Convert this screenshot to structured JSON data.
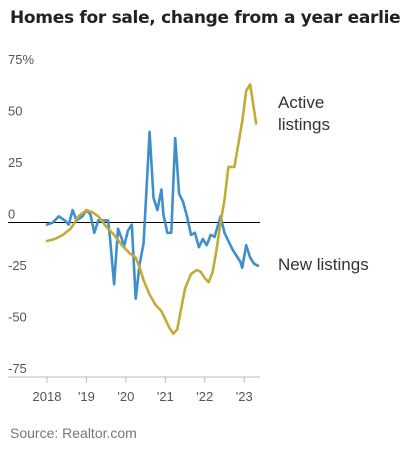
{
  "chart_data": {
    "type": "line",
    "title": "Homes for sale, change from a year earlier",
    "source": "Source: Realtor.com",
    "ylim": [
      -75,
      75
    ],
    "xlim": [
      2018,
      2023.4
    ],
    "y_ticks": [
      75,
      50,
      25,
      0,
      -25,
      -50,
      -75
    ],
    "y_tick_labels": [
      "75%",
      "50",
      "25",
      "0",
      "-25",
      "-50",
      "-75"
    ],
    "x_ticks": [
      2018,
      2019,
      2020,
      2021,
      2022,
      2023
    ],
    "x_tick_labels": [
      "2018",
      "'19",
      "'20",
      "'21",
      "'22",
      "'23"
    ],
    "grid": false,
    "colors": {
      "active": "#c2ab36",
      "new": "#3f8fcb",
      "zero": "#000000",
      "axis": "#bbbbbb"
    },
    "series": [
      {
        "name": "Active listings",
        "label_lines": [
          "Active",
          "listings"
        ],
        "color": "#c2ab36",
        "points": [
          [
            2018.0,
            -9
          ],
          [
            2018.2,
            -8
          ],
          [
            2018.4,
            -6
          ],
          [
            2018.6,
            -3
          ],
          [
            2018.8,
            3
          ],
          [
            2019.0,
            6
          ],
          [
            2019.15,
            5
          ],
          [
            2019.3,
            3
          ],
          [
            2019.5,
            -2
          ],
          [
            2019.7,
            -6
          ],
          [
            2019.9,
            -11
          ],
          [
            2020.1,
            -15
          ],
          [
            2020.25,
            -17
          ],
          [
            2020.35,
            -22
          ],
          [
            2020.45,
            -28
          ],
          [
            2020.6,
            -35
          ],
          [
            2020.75,
            -40
          ],
          [
            2020.9,
            -43
          ],
          [
            2021.0,
            -47
          ],
          [
            2021.1,
            -51
          ],
          [
            2021.2,
            -54
          ],
          [
            2021.3,
            -52
          ],
          [
            2021.4,
            -42
          ],
          [
            2021.5,
            -32
          ],
          [
            2021.65,
            -25
          ],
          [
            2021.8,
            -23
          ],
          [
            2021.9,
            -24
          ],
          [
            2022.0,
            -27
          ],
          [
            2022.1,
            -29
          ],
          [
            2022.2,
            -24
          ],
          [
            2022.3,
            -13
          ],
          [
            2022.4,
            0
          ],
          [
            2022.5,
            11
          ],
          [
            2022.6,
            27
          ],
          [
            2022.75,
            27
          ],
          [
            2022.85,
            38
          ],
          [
            2022.95,
            49
          ],
          [
            2023.05,
            64
          ],
          [
            2023.15,
            67
          ],
          [
            2023.2,
            61
          ],
          [
            2023.3,
            48
          ]
        ]
      },
      {
        "name": "New listings",
        "label_lines": [
          "New listings"
        ],
        "color": "#3f8fcb",
        "points": [
          [
            2018.0,
            -1
          ],
          [
            2018.15,
            0
          ],
          [
            2018.3,
            3
          ],
          [
            2018.45,
            1
          ],
          [
            2018.55,
            -1
          ],
          [
            2018.65,
            6
          ],
          [
            2018.75,
            1
          ],
          [
            2018.9,
            3
          ],
          [
            2019.0,
            6
          ],
          [
            2019.1,
            4
          ],
          [
            2019.2,
            -5
          ],
          [
            2019.3,
            1
          ],
          [
            2019.45,
            1
          ],
          [
            2019.55,
            1
          ],
          [
            2019.6,
            -8
          ],
          [
            2019.7,
            -30
          ],
          [
            2019.8,
            -3
          ],
          [
            2019.9,
            -8
          ],
          [
            2019.95,
            -12
          ],
          [
            2020.05,
            -4
          ],
          [
            2020.15,
            -1
          ],
          [
            2020.25,
            -37
          ],
          [
            2020.35,
            -20
          ],
          [
            2020.45,
            -10
          ],
          [
            2020.6,
            44
          ],
          [
            2020.7,
            12
          ],
          [
            2020.8,
            6
          ],
          [
            2020.9,
            16
          ],
          [
            2020.95,
            4
          ],
          [
            2021.05,
            -5
          ],
          [
            2021.15,
            -5
          ],
          [
            2021.25,
            41
          ],
          [
            2021.35,
            14
          ],
          [
            2021.45,
            10
          ],
          [
            2021.55,
            3
          ],
          [
            2021.65,
            -6
          ],
          [
            2021.75,
            -5
          ],
          [
            2021.85,
            -12
          ],
          [
            2021.95,
            -8
          ],
          [
            2022.05,
            -11
          ],
          [
            2022.15,
            -6
          ],
          [
            2022.25,
            -7
          ],
          [
            2022.4,
            3
          ],
          [
            2022.5,
            -5
          ],
          [
            2022.6,
            -9
          ],
          [
            2022.7,
            -13
          ],
          [
            2022.8,
            -16
          ],
          [
            2022.9,
            -19
          ],
          [
            2022.95,
            -22
          ],
          [
            2023.05,
            -11
          ],
          [
            2023.15,
            -17
          ],
          [
            2023.25,
            -20
          ],
          [
            2023.35,
            -21
          ]
        ]
      }
    ]
  }
}
